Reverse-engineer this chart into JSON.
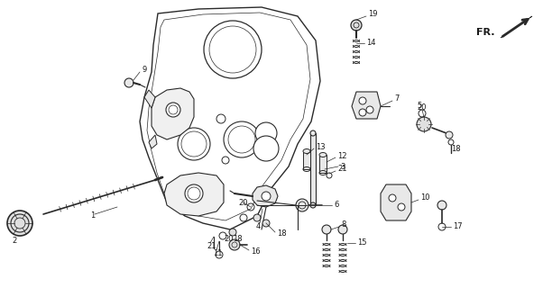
{
  "background_color": "#ffffff",
  "line_color": "#2a2a2a",
  "label_color": "#1a1a1a",
  "fr_label": "FR.",
  "figsize": [
    6.02,
    3.2
  ],
  "dpi": 100,
  "xlim": [
    0,
    602
  ],
  "ylim": [
    0,
    320
  ]
}
